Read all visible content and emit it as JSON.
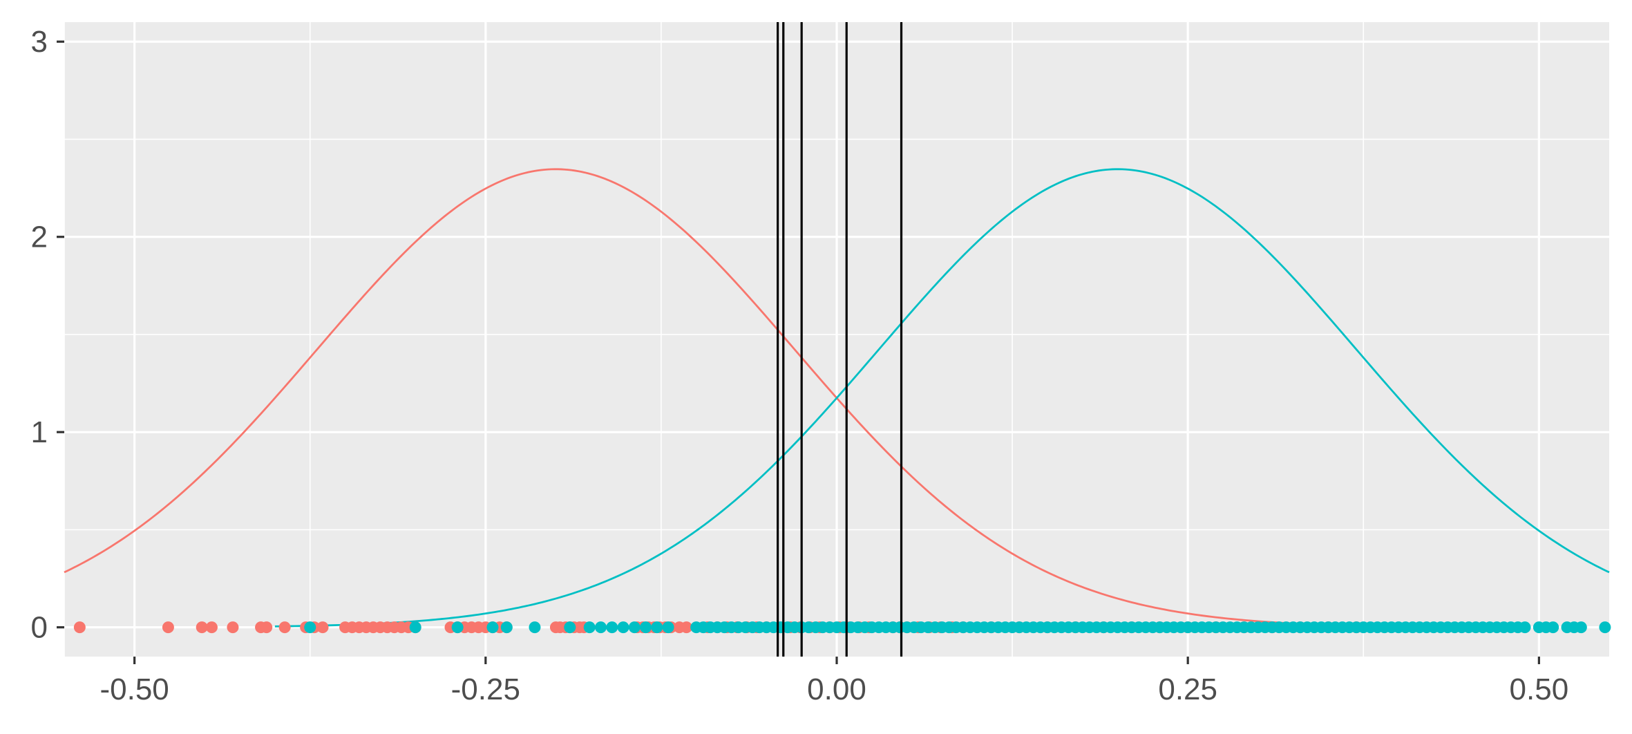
{
  "chart_data": {
    "type": "line",
    "title": "",
    "xlabel": "",
    "ylabel": "",
    "xlim": [
      -0.55,
      0.55
    ],
    "ylim": [
      -0.15,
      3.1
    ],
    "x_ticks": [
      -0.5,
      -0.25,
      0.0,
      0.25,
      0.5
    ],
    "x_tick_labels": [
      "-0.50",
      "-0.25",
      "0.00",
      "0.25",
      "0.50"
    ],
    "y_ticks": [
      0,
      1,
      2,
      3
    ],
    "y_tick_labels": [
      "0",
      "1",
      "2",
      "3"
    ],
    "grid": true,
    "legend": "none",
    "series": [
      {
        "type": "density",
        "color": "#F8766D",
        "mean": -0.2,
        "sd": 0.17,
        "x": [
          -0.55,
          -0.5,
          -0.45,
          -0.4,
          -0.35,
          -0.3,
          -0.25,
          -0.2,
          -0.15,
          -0.1,
          -0.05,
          0.0,
          0.05,
          0.1,
          0.15,
          0.2,
          0.25,
          0.3,
          0.35,
          0.4
        ],
        "y": [
          0.28,
          0.49,
          0.79,
          1.18,
          1.59,
          1.98,
          2.24,
          2.35,
          2.24,
          1.98,
          1.59,
          1.18,
          0.79,
          0.49,
          0.28,
          0.15,
          0.07,
          0.03,
          0.01,
          0.0
        ]
      },
      {
        "type": "density",
        "color": "#00BFC4",
        "mean": 0.2,
        "sd": 0.17,
        "x": [
          -0.4,
          -0.35,
          -0.3,
          -0.25,
          -0.2,
          -0.15,
          -0.1,
          -0.05,
          0.0,
          0.05,
          0.1,
          0.15,
          0.2,
          0.25,
          0.3,
          0.35,
          0.4,
          0.45,
          0.5,
          0.55
        ],
        "y": [
          0.0,
          0.01,
          0.03,
          0.07,
          0.15,
          0.28,
          0.49,
          0.79,
          1.18,
          1.59,
          1.98,
          2.24,
          2.35,
          2.24,
          1.98,
          1.59,
          1.18,
          0.79,
          0.49,
          0.28
        ]
      }
    ],
    "vlines": {
      "color": "#000000",
      "x": [
        -0.042,
        -0.038,
        -0.025,
        0.007,
        0.046
      ]
    },
    "points": [
      {
        "color": "#F8766D",
        "y": 0,
        "x": [
          -0.539,
          -0.476,
          -0.452,
          -0.445,
          -0.43,
          -0.41,
          -0.406,
          -0.393,
          -0.378,
          -0.372,
          -0.366,
          -0.35,
          -0.345,
          -0.34,
          -0.335,
          -0.33,
          -0.325,
          -0.32,
          -0.315,
          -0.31,
          -0.305,
          -0.3,
          -0.275,
          -0.27,
          -0.265,
          -0.26,
          -0.255,
          -0.25,
          -0.245,
          -0.24,
          -0.235,
          -0.2,
          -0.197,
          -0.193,
          -0.19,
          -0.187,
          -0.183,
          -0.18,
          -0.142,
          -0.138,
          -0.134,
          -0.13,
          -0.126,
          -0.122,
          -0.118,
          -0.112,
          -0.107,
          -0.092,
          -0.085,
          -0.078,
          -0.071,
          -0.064,
          -0.057,
          -0.05,
          -0.04,
          -0.033,
          -0.026,
          -0.019,
          -0.012,
          -0.005,
          0.002,
          0.009,
          0.016,
          0.023,
          0.04,
          0.045,
          0.05,
          0.058,
          0.066,
          0.074,
          0.082,
          0.09,
          0.11,
          0.13,
          0.15,
          0.17,
          0.19,
          0.21,
          0.23,
          0.25,
          0.27,
          0.29,
          0.31,
          0.33,
          0.35,
          0.37
        ]
      },
      {
        "color": "#00BFC4",
        "y": 0,
        "x": [
          -0.375,
          -0.3,
          -0.27,
          -0.245,
          -0.235,
          -0.215,
          -0.19,
          -0.176,
          -0.168,
          -0.16,
          -0.152,
          -0.144,
          -0.136,
          -0.128,
          -0.12,
          -0.1,
          -0.095,
          -0.09,
          -0.085,
          -0.08,
          -0.075,
          -0.07,
          -0.065,
          -0.06,
          -0.055,
          -0.05,
          -0.045,
          -0.04,
          -0.035,
          -0.03,
          -0.025,
          -0.02,
          -0.015,
          -0.01,
          -0.005,
          0.0,
          0.005,
          0.01,
          0.015,
          0.02,
          0.025,
          0.03,
          0.035,
          0.04,
          0.045,
          0.05,
          0.055,
          0.06,
          0.065,
          0.07,
          0.075,
          0.08,
          0.085,
          0.09,
          0.095,
          0.1,
          0.105,
          0.11,
          0.115,
          0.12,
          0.125,
          0.13,
          0.135,
          0.14,
          0.145,
          0.15,
          0.155,
          0.16,
          0.165,
          0.17,
          0.175,
          0.18,
          0.185,
          0.19,
          0.195,
          0.2,
          0.205,
          0.21,
          0.215,
          0.22,
          0.225,
          0.23,
          0.235,
          0.24,
          0.245,
          0.25,
          0.255,
          0.26,
          0.265,
          0.27,
          0.275,
          0.28,
          0.285,
          0.29,
          0.295,
          0.3,
          0.305,
          0.31,
          0.315,
          0.32,
          0.325,
          0.33,
          0.335,
          0.34,
          0.345,
          0.35,
          0.355,
          0.36,
          0.365,
          0.37,
          0.375,
          0.38,
          0.385,
          0.39,
          0.395,
          0.4,
          0.405,
          0.41,
          0.415,
          0.42,
          0.425,
          0.43,
          0.435,
          0.44,
          0.445,
          0.45,
          0.455,
          0.46,
          0.465,
          0.47,
          0.475,
          0.48,
          0.485,
          0.49,
          0.5,
          0.505,
          0.51,
          0.52,
          0.525,
          0.53,
          0.547
        ]
      }
    ]
  }
}
